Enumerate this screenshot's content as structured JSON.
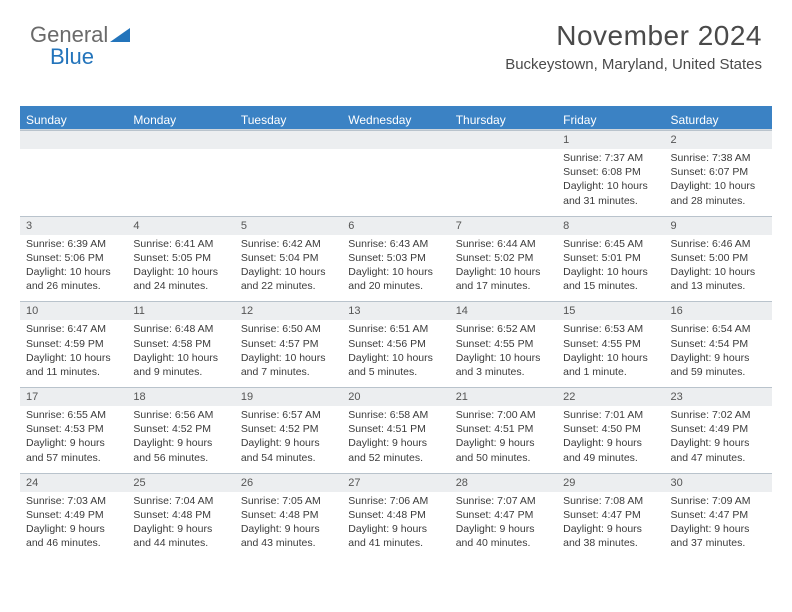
{
  "logo": {
    "part1": "General",
    "part2": "Blue"
  },
  "title": {
    "month": "November 2024",
    "location": "Buckeystown, Maryland, United States"
  },
  "colors": {
    "accent": "#3b82c4",
    "headerText": "#ffffff",
    "dayBg": "#eceef0",
    "border": "#b9c3cc"
  },
  "dayHeaders": [
    "Sunday",
    "Monday",
    "Tuesday",
    "Wednesday",
    "Thursday",
    "Friday",
    "Saturday"
  ],
  "weeks": [
    [
      null,
      null,
      null,
      null,
      null,
      {
        "n": "1",
        "sr": "Sunrise: 7:37 AM",
        "ss": "Sunset: 6:08 PM",
        "dl": "Daylight: 10 hours and 31 minutes."
      },
      {
        "n": "2",
        "sr": "Sunrise: 7:38 AM",
        "ss": "Sunset: 6:07 PM",
        "dl": "Daylight: 10 hours and 28 minutes."
      }
    ],
    [
      {
        "n": "3",
        "sr": "Sunrise: 6:39 AM",
        "ss": "Sunset: 5:06 PM",
        "dl": "Daylight: 10 hours and 26 minutes."
      },
      {
        "n": "4",
        "sr": "Sunrise: 6:41 AM",
        "ss": "Sunset: 5:05 PM",
        "dl": "Daylight: 10 hours and 24 minutes."
      },
      {
        "n": "5",
        "sr": "Sunrise: 6:42 AM",
        "ss": "Sunset: 5:04 PM",
        "dl": "Daylight: 10 hours and 22 minutes."
      },
      {
        "n": "6",
        "sr": "Sunrise: 6:43 AM",
        "ss": "Sunset: 5:03 PM",
        "dl": "Daylight: 10 hours and 20 minutes."
      },
      {
        "n": "7",
        "sr": "Sunrise: 6:44 AM",
        "ss": "Sunset: 5:02 PM",
        "dl": "Daylight: 10 hours and 17 minutes."
      },
      {
        "n": "8",
        "sr": "Sunrise: 6:45 AM",
        "ss": "Sunset: 5:01 PM",
        "dl": "Daylight: 10 hours and 15 minutes."
      },
      {
        "n": "9",
        "sr": "Sunrise: 6:46 AM",
        "ss": "Sunset: 5:00 PM",
        "dl": "Daylight: 10 hours and 13 minutes."
      }
    ],
    [
      {
        "n": "10",
        "sr": "Sunrise: 6:47 AM",
        "ss": "Sunset: 4:59 PM",
        "dl": "Daylight: 10 hours and 11 minutes."
      },
      {
        "n": "11",
        "sr": "Sunrise: 6:48 AM",
        "ss": "Sunset: 4:58 PM",
        "dl": "Daylight: 10 hours and 9 minutes."
      },
      {
        "n": "12",
        "sr": "Sunrise: 6:50 AM",
        "ss": "Sunset: 4:57 PM",
        "dl": "Daylight: 10 hours and 7 minutes."
      },
      {
        "n": "13",
        "sr": "Sunrise: 6:51 AM",
        "ss": "Sunset: 4:56 PM",
        "dl": "Daylight: 10 hours and 5 minutes."
      },
      {
        "n": "14",
        "sr": "Sunrise: 6:52 AM",
        "ss": "Sunset: 4:55 PM",
        "dl": "Daylight: 10 hours and 3 minutes."
      },
      {
        "n": "15",
        "sr": "Sunrise: 6:53 AM",
        "ss": "Sunset: 4:55 PM",
        "dl": "Daylight: 10 hours and 1 minute."
      },
      {
        "n": "16",
        "sr": "Sunrise: 6:54 AM",
        "ss": "Sunset: 4:54 PM",
        "dl": "Daylight: 9 hours and 59 minutes."
      }
    ],
    [
      {
        "n": "17",
        "sr": "Sunrise: 6:55 AM",
        "ss": "Sunset: 4:53 PM",
        "dl": "Daylight: 9 hours and 57 minutes."
      },
      {
        "n": "18",
        "sr": "Sunrise: 6:56 AM",
        "ss": "Sunset: 4:52 PM",
        "dl": "Daylight: 9 hours and 56 minutes."
      },
      {
        "n": "19",
        "sr": "Sunrise: 6:57 AM",
        "ss": "Sunset: 4:52 PM",
        "dl": "Daylight: 9 hours and 54 minutes."
      },
      {
        "n": "20",
        "sr": "Sunrise: 6:58 AM",
        "ss": "Sunset: 4:51 PM",
        "dl": "Daylight: 9 hours and 52 minutes."
      },
      {
        "n": "21",
        "sr": "Sunrise: 7:00 AM",
        "ss": "Sunset: 4:51 PM",
        "dl": "Daylight: 9 hours and 50 minutes."
      },
      {
        "n": "22",
        "sr": "Sunrise: 7:01 AM",
        "ss": "Sunset: 4:50 PM",
        "dl": "Daylight: 9 hours and 49 minutes."
      },
      {
        "n": "23",
        "sr": "Sunrise: 7:02 AM",
        "ss": "Sunset: 4:49 PM",
        "dl": "Daylight: 9 hours and 47 minutes."
      }
    ],
    [
      {
        "n": "24",
        "sr": "Sunrise: 7:03 AM",
        "ss": "Sunset: 4:49 PM",
        "dl": "Daylight: 9 hours and 46 minutes."
      },
      {
        "n": "25",
        "sr": "Sunrise: 7:04 AM",
        "ss": "Sunset: 4:48 PM",
        "dl": "Daylight: 9 hours and 44 minutes."
      },
      {
        "n": "26",
        "sr": "Sunrise: 7:05 AM",
        "ss": "Sunset: 4:48 PM",
        "dl": "Daylight: 9 hours and 43 minutes."
      },
      {
        "n": "27",
        "sr": "Sunrise: 7:06 AM",
        "ss": "Sunset: 4:48 PM",
        "dl": "Daylight: 9 hours and 41 minutes."
      },
      {
        "n": "28",
        "sr": "Sunrise: 7:07 AM",
        "ss": "Sunset: 4:47 PM",
        "dl": "Daylight: 9 hours and 40 minutes."
      },
      {
        "n": "29",
        "sr": "Sunrise: 7:08 AM",
        "ss": "Sunset: 4:47 PM",
        "dl": "Daylight: 9 hours and 38 minutes."
      },
      {
        "n": "30",
        "sr": "Sunrise: 7:09 AM",
        "ss": "Sunset: 4:47 PM",
        "dl": "Daylight: 9 hours and 37 minutes."
      }
    ]
  ]
}
